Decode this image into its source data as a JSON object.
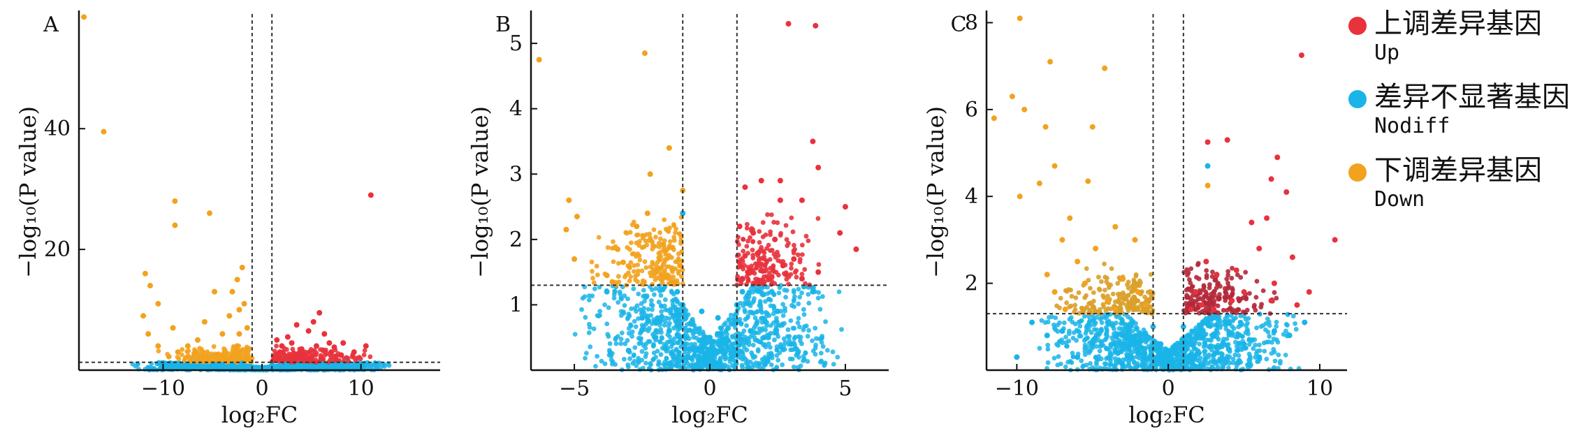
{
  "colors": {
    "up": "#e8323c",
    "nodiff": "#1ab4e8",
    "down": "#f2a21e",
    "up_dark": "#b4283a",
    "down_dark": "#d9a02a",
    "axis": "#111111"
  },
  "legend": [
    {
      "cn": "上调差异基因",
      "en": "Up",
      "color": "#e8323c"
    },
    {
      "cn": "差异不显著基因",
      "en": "Nodiff",
      "color": "#1ab4e8"
    },
    {
      "cn": "下调差异基因",
      "en": "Down",
      "color": "#f2a21e"
    }
  ],
  "chart_data": [
    {
      "type": "scatter",
      "panel_label": "A",
      "xlabel": "log₂FC",
      "ylabel": "−log₁₀(P value)",
      "xlim": [
        -18.5,
        18
      ],
      "ylim": [
        0,
        59
      ],
      "xticks": [
        -10,
        0,
        10
      ],
      "yticks": [
        20,
        40
      ],
      "fc_threshold": [
        -1,
        1
      ],
      "p_threshold": 1.3,
      "series": [
        {
          "name": "Up",
          "points": [
            [
              11,
              29
            ],
            [
              5.8,
              9.5
            ],
            [
              5.2,
              8
            ],
            [
              3.5,
              7.5
            ],
            [
              6.3,
              6
            ],
            [
              4.7,
              6.5
            ],
            [
              2.6,
              5.5
            ],
            [
              3,
              4.5
            ],
            [
              8.2,
              4.5
            ],
            [
              7.3,
              3.8
            ],
            [
              10.5,
              4
            ],
            [
              9.3,
              3
            ],
            [
              6.8,
              4.5
            ],
            [
              1.5,
              5
            ],
            [
              2,
              4
            ],
            [
              4,
              3.5
            ],
            [
              5.5,
              4
            ],
            [
              7,
              3
            ],
            [
              8,
              2.5
            ],
            [
              3.2,
              2.8
            ],
            [
              1.8,
              3
            ],
            [
              4.5,
              2.2
            ],
            [
              6,
              2
            ],
            [
              2.5,
              2
            ],
            [
              1.2,
              2.2
            ]
          ]
        },
        {
          "name": "Nodiff",
          "points": [
            [
              -3,
              1
            ],
            [
              -1.5,
              0.5
            ],
            [
              0,
              0.3
            ],
            [
              1,
              0.8
            ],
            [
              2.5,
              1
            ],
            [
              4,
              0.5
            ],
            [
              -5,
              0.8
            ],
            [
              -6,
              0.5
            ],
            [
              6,
              1
            ],
            [
              7,
              0.7
            ],
            [
              -7.5,
              0.9
            ],
            [
              3,
              0.4
            ],
            [
              0.5,
              0.1
            ],
            [
              -0.5,
              0.2
            ],
            [
              5,
              0.7
            ],
            [
              -4,
              0.4
            ],
            [
              8,
              0.9
            ],
            [
              -2,
              1.1
            ],
            [
              1.5,
              0.6
            ],
            [
              -8.5,
              0.7
            ]
          ]
        },
        {
          "name": "Down",
          "points": [
            [
              -18,
              58.5
            ],
            [
              -16,
              39.5
            ],
            [
              -8.8,
              28
            ],
            [
              -8.8,
              24
            ],
            [
              -5.3,
              26
            ],
            [
              -2,
              17
            ],
            [
              -2.5,
              15
            ],
            [
              -3,
              13
            ],
            [
              -11.8,
              16
            ],
            [
              -11.3,
              14
            ],
            [
              -10.5,
              11
            ],
            [
              -4.8,
              13
            ],
            [
              -3.3,
              9
            ],
            [
              -2.3,
              10
            ],
            [
              -1.8,
              11
            ],
            [
              -12,
              9
            ],
            [
              -9,
              7
            ],
            [
              -6.5,
              5
            ],
            [
              -7.5,
              4
            ],
            [
              -5.8,
              8
            ],
            [
              -4,
              6
            ],
            [
              -1.5,
              7
            ],
            [
              -2.3,
              6
            ],
            [
              -11.5,
              6
            ],
            [
              -10.5,
              4
            ],
            [
              -8.5,
              3
            ],
            [
              -6,
              3
            ],
            [
              -4,
              2.5
            ],
            [
              -2.5,
              4
            ],
            [
              -1.5,
              3.5
            ],
            [
              -3,
              2
            ]
          ]
        }
      ]
    },
    {
      "type": "scatter",
      "panel_label": "B",
      "xlabel": "log₂FC",
      "ylabel": "−log₁₀(P value)",
      "xlim": [
        -6.6,
        6.6
      ],
      "ylim": [
        0,
        5.45
      ],
      "xticks": [
        -5,
        0,
        5
      ],
      "yticks": [
        1,
        2,
        3,
        4,
        5
      ],
      "fc_threshold": [
        -1,
        1
      ],
      "p_threshold": 1.3,
      "series": [
        {
          "name": "Up",
          "points": [
            [
              2.9,
              5.3
            ],
            [
              3.9,
              5.27
            ],
            [
              3.8,
              3.5
            ],
            [
              4,
              3.1
            ],
            [
              2.6,
              2.6
            ],
            [
              1.9,
              2.9
            ],
            [
              2.6,
              2.9
            ],
            [
              3.4,
              2.6
            ],
            [
              1.3,
              2.8
            ],
            [
              5,
              2.5
            ],
            [
              5.4,
              1.85
            ],
            [
              4.8,
              2.1
            ],
            [
              2.4,
              2
            ],
            [
              1.8,
              1.8
            ],
            [
              3.1,
              1.7
            ],
            [
              1.6,
              2.1
            ],
            [
              2.7,
              1.6
            ],
            [
              1.1,
              2.2
            ],
            [
              1.4,
              1.5
            ],
            [
              3.4,
              1.4
            ],
            [
              4,
              1.5
            ],
            [
              2.2,
              1.4
            ],
            [
              1.2,
              1.4
            ]
          ]
        },
        {
          "name": "Nodiff",
          "points": [
            [
              -1,
              2.4
            ],
            [
              0,
              0.5
            ],
            [
              -0.5,
              0.3
            ],
            [
              0.5,
              0.3
            ],
            [
              1,
              1
            ],
            [
              -1,
              1
            ],
            [
              1.5,
              0.6
            ],
            [
              -1.5,
              0.6
            ],
            [
              2,
              0.5
            ],
            [
              -2,
              0.5
            ],
            [
              -3.8,
              1.2
            ],
            [
              3.8,
              1.2
            ],
            [
              0.3,
              0.8
            ],
            [
              -0.3,
              0.9
            ],
            [
              0,
              0.1
            ],
            [
              2.5,
              0.9
            ],
            [
              -2.5,
              0.8
            ],
            [
              0.8,
              0.2
            ],
            [
              -0.8,
              0.2
            ],
            [
              3,
              0.4
            ],
            [
              -3,
              0.3
            ],
            [
              1.2,
              1.2
            ],
            [
              -1.2,
              1.2
            ],
            [
              0.1,
              0.05
            ]
          ]
        },
        {
          "name": "Down",
          "points": [
            [
              -6.3,
              4.75
            ],
            [
              -2.4,
              4.85
            ],
            [
              -1.5,
              3.4
            ],
            [
              -2.2,
              3
            ],
            [
              -1,
              2.75
            ],
            [
              -5.2,
              2.6
            ],
            [
              -4.9,
              2.35
            ],
            [
              -5.3,
              2.15
            ],
            [
              -2.3,
              2.4
            ],
            [
              -3.4,
              1.85
            ],
            [
              -2.7,
              2.2
            ],
            [
              -5,
              1.7
            ],
            [
              -3.2,
              1.65
            ],
            [
              -3.8,
              1.45
            ],
            [
              -1.1,
              1.6
            ],
            [
              -1.8,
              1.45
            ],
            [
              -3.6,
              1.35
            ],
            [
              -1.3,
              1.35
            ]
          ]
        }
      ]
    },
    {
      "type": "scatter",
      "panel_label": "C",
      "xlabel": "log₂FC",
      "ylabel": "−log₁₀(P value)",
      "xlim": [
        -12,
        11.8
      ],
      "ylim": [
        0,
        8.2
      ],
      "xticks": [
        -10,
        0,
        10
      ],
      "yticks": [
        2,
        4,
        6,
        8
      ],
      "fc_threshold": [
        -1,
        1
      ],
      "p_threshold": 1.3,
      "series": [
        {
          "name": "Up",
          "points": [
            [
              2.6,
              5.25
            ],
            [
              3.9,
              5.3
            ],
            [
              8.8,
              7.25
            ],
            [
              7.2,
              4.9
            ],
            [
              6.8,
              4.4
            ],
            [
              7.8,
              4.1
            ],
            [
              11,
              3
            ],
            [
              6.5,
              3.5
            ],
            [
              5.5,
              3.4
            ],
            [
              8.2,
              2.6
            ],
            [
              9.3,
              1.8
            ],
            [
              4.5,
              2.3
            ],
            [
              2.5,
              2.5
            ],
            [
              3.2,
              2.2
            ],
            [
              5,
              1.8
            ],
            [
              6,
              2.8
            ],
            [
              1.8,
              1.8
            ],
            [
              2.2,
              1.5
            ],
            [
              4.2,
              1.6
            ],
            [
              7,
              2
            ],
            [
              3,
              1.4
            ],
            [
              1.5,
              1.4
            ],
            [
              8.5,
              1.5
            ],
            [
              6.8,
              1.6
            ]
          ]
        },
        {
          "name": "Nodiff",
          "points": [
            [
              2.6,
              4.7
            ],
            [
              -10,
              0.3
            ],
            [
              0,
              0.2
            ],
            [
              -1,
              1
            ],
            [
              1,
              1
            ],
            [
              -3,
              0.8
            ],
            [
              3,
              0.8
            ],
            [
              -5,
              0.6
            ],
            [
              5,
              0.6
            ],
            [
              -7,
              0.9
            ],
            [
              7,
              0.9
            ],
            [
              -2,
              0.4
            ],
            [
              2,
              0.4
            ],
            [
              -4,
              1.1
            ],
            [
              4,
              1.1
            ],
            [
              -6,
              0.3
            ],
            [
              6,
              0.3
            ],
            [
              -8,
              0.8
            ],
            [
              8,
              0.8
            ],
            [
              0.5,
              0.5
            ],
            [
              -0.5,
              0.6
            ],
            [
              9,
              1.1
            ],
            [
              -9,
              1.1
            ]
          ]
        },
        {
          "name": "Down",
          "points": [
            [
              2.6,
              4.25
            ],
            [
              -9.8,
              8.1
            ],
            [
              -7.8,
              7.1
            ],
            [
              -4.2,
              6.95
            ],
            [
              -10.3,
              6.3
            ],
            [
              -9.5,
              6
            ],
            [
              -8.1,
              5.6
            ],
            [
              -5,
              5.6
            ],
            [
              -11.5,
              5.8
            ],
            [
              -7.5,
              4.7
            ],
            [
              -5.3,
              4.35
            ],
            [
              -8.5,
              4.3
            ],
            [
              -9.8,
              4
            ],
            [
              -6.5,
              3.5
            ],
            [
              -7,
              3
            ],
            [
              -3.5,
              3.3
            ],
            [
              -2.2,
              3
            ],
            [
              -4.8,
              2.8
            ],
            [
              -6,
              2.5
            ],
            [
              -8,
              2.2
            ],
            [
              -3,
              2.1
            ],
            [
              -5.5,
              2
            ],
            [
              -7.5,
              1.8
            ],
            [
              -2,
              1.8
            ],
            [
              -4,
              1.6
            ],
            [
              -1.5,
              1.5
            ],
            [
              -6.8,
              1.4
            ],
            [
              -3.5,
              1.4
            ]
          ]
        }
      ]
    }
  ]
}
